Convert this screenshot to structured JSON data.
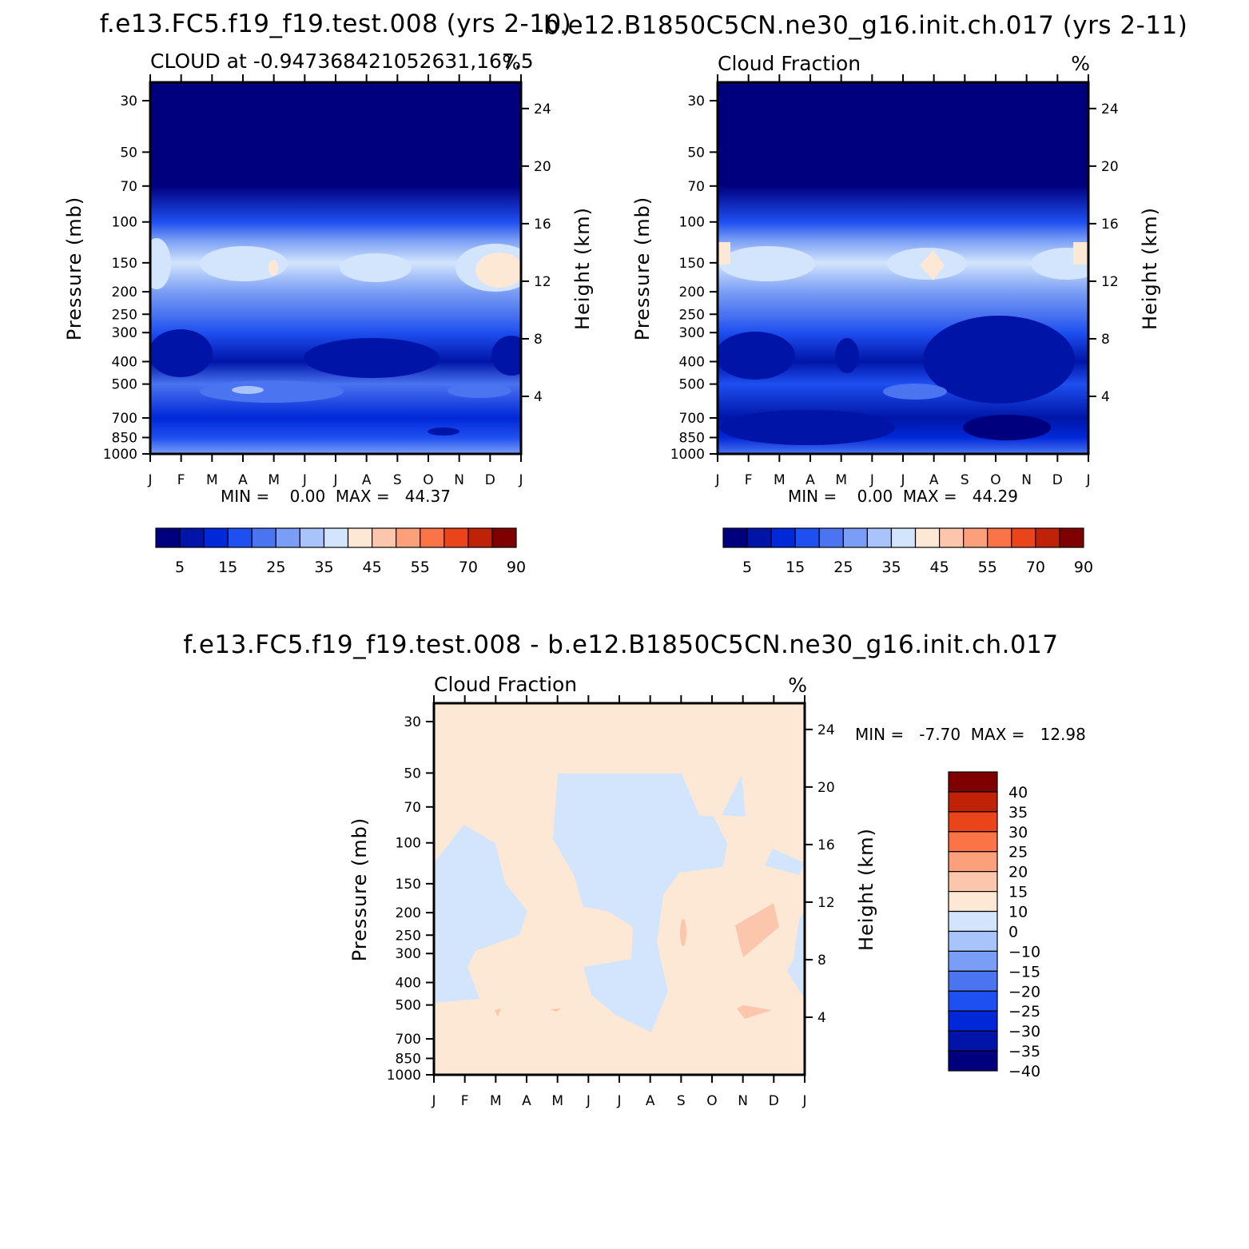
{
  "colormap": [
    "#00007f",
    "#0015a8",
    "#0028d8",
    "#1e4ff0",
    "#4a74f0",
    "#7a9ef5",
    "#a8c4fa",
    "#d3e5fc",
    "#fde8d6",
    "#fcc6ad",
    "#fba07a",
    "#fa7448",
    "#ea451a",
    "#c02208",
    "#7e0000"
  ],
  "chart_data": [
    {
      "type": "heatmap",
      "panel": "test",
      "header": "f.e13.FC5.f19_f19.test.008 (yrs 2-10)",
      "title": "CLOUD at -0.947368421052631,167.5",
      "units": "%",
      "x_categories": [
        "J",
        "F",
        "M",
        "A",
        "M",
        "J",
        "J",
        "A",
        "S",
        "O",
        "N",
        "D",
        "J"
      ],
      "y_ticks": [
        30,
        50,
        70,
        100,
        150,
        200,
        250,
        300,
        400,
        500,
        700,
        850,
        1000
      ],
      "ylabel": "Pressure (mb)",
      "y2_ticks": [
        4,
        8,
        12,
        16,
        20,
        24
      ],
      "y2label": "Height (km)",
      "ylim": [
        1000,
        25
      ],
      "grid": false,
      "min_max": "MIN =    0.00  MAX =   44.37",
      "min": 0.0,
      "max": 44.37,
      "colorbar_labels": [
        "5",
        "15",
        "25",
        "35",
        "45",
        "55",
        "70",
        "90"
      ],
      "colorbar_levels": [
        0,
        5,
        10,
        15,
        20,
        25,
        30,
        35,
        40,
        45,
        50,
        55,
        60,
        70,
        80,
        90
      ],
      "profile_levels_mb": [
        25,
        70,
        100,
        120,
        150,
        200,
        250,
        300,
        400,
        500,
        700,
        850,
        1000
      ],
      "profile_values": [
        0,
        3,
        15,
        25,
        36,
        25,
        20,
        15,
        8,
        20,
        12,
        15,
        25
      ]
    },
    {
      "type": "heatmap",
      "panel": "control",
      "header": "b.e12.B1850C5CN.ne30_g16.init.ch.017 (yrs 2-11)",
      "title": "Cloud Fraction",
      "units": "%",
      "x_categories": [
        "J",
        "F",
        "M",
        "A",
        "M",
        "J",
        "J",
        "A",
        "S",
        "O",
        "N",
        "D",
        "J"
      ],
      "y_ticks": [
        30,
        50,
        70,
        100,
        150,
        200,
        250,
        300,
        400,
        500,
        700,
        850,
        1000
      ],
      "ylabel": "Pressure (mb)",
      "y2_ticks": [
        4,
        8,
        12,
        16,
        20,
        24
      ],
      "y2label": "Height (km)",
      "ylim": [
        1000,
        25
      ],
      "grid": false,
      "min_max": "MIN =    0.00  MAX =   44.29",
      "min": 0.0,
      "max": 44.29,
      "colorbar_labels": [
        "5",
        "15",
        "25",
        "35",
        "45",
        "55",
        "70",
        "90"
      ],
      "colorbar_levels": [
        0,
        5,
        10,
        15,
        20,
        25,
        30,
        35,
        40,
        45,
        50,
        55,
        60,
        70,
        80,
        90
      ],
      "profile_levels_mb": [
        25,
        70,
        100,
        120,
        150,
        200,
        250,
        300,
        400,
        500,
        700,
        850,
        1000
      ],
      "profile_values": [
        0,
        3,
        15,
        25,
        36,
        25,
        20,
        15,
        8,
        15,
        5,
        12,
        22
      ]
    },
    {
      "type": "heatmap",
      "panel": "difference",
      "header": "f.e13.FC5.f19_f19.test.008 - b.e12.B1850C5CN.ne30_g16.init.ch.017",
      "title": "Cloud Fraction",
      "units": "%",
      "x_categories": [
        "J",
        "F",
        "M",
        "A",
        "M",
        "J",
        "J",
        "A",
        "S",
        "O",
        "N",
        "D",
        "J"
      ],
      "y_ticks": [
        30,
        50,
        70,
        100,
        150,
        200,
        250,
        300,
        400,
        500,
        700,
        850,
        1000
      ],
      "ylabel": "Pressure (mb)",
      "y2_ticks": [
        4,
        8,
        12,
        16,
        20,
        24
      ],
      "y2label": "Height (km)",
      "ylim": [
        1000,
        25
      ],
      "grid": false,
      "min_max": "MIN =   -7.70  MAX =   12.98",
      "min": -7.7,
      "max": 12.98,
      "colorbar_labels": [
        "40",
        "35",
        "30",
        "25",
        "20",
        "15",
        "10",
        "0",
        "-10",
        "-15",
        "-20",
        "-25",
        "-30",
        "-35",
        "-40"
      ],
      "colorbar_levels": [
        -40,
        -35,
        -30,
        -25,
        -20,
        -15,
        -10,
        0,
        10,
        15,
        20,
        25,
        30,
        35,
        40
      ]
    }
  ]
}
